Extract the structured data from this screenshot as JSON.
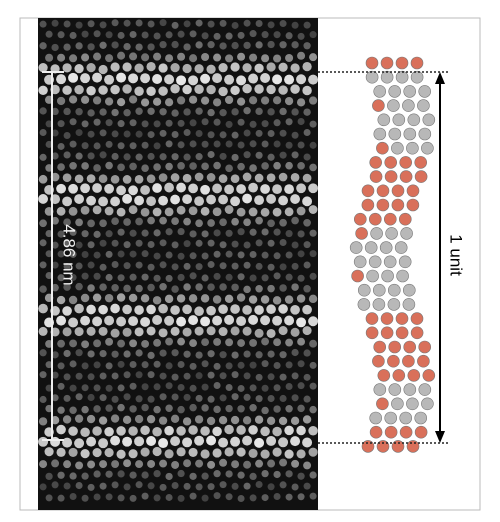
{
  "scale_bar": {
    "label": "4.86 nm"
  },
  "unit_marker": {
    "label": "1 unit"
  }
}
